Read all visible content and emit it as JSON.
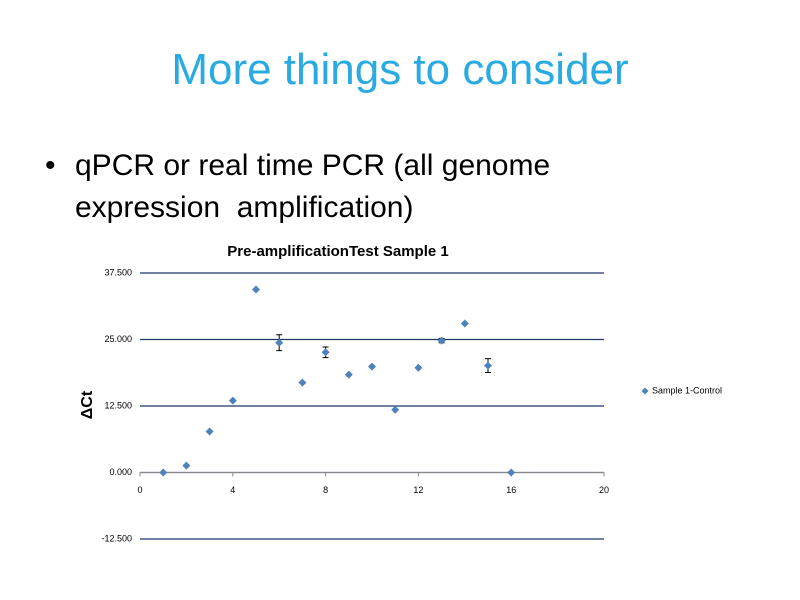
{
  "slide": {
    "title": "More things to consider",
    "bullets": [
      "qPCR or real time PCR (all genome expression  amplification)"
    ]
  },
  "chart_data": {
    "type": "scatter",
    "title": "Pre-amplificationTest Sample 1",
    "y_label": "ΔCt",
    "x": [
      1,
      2,
      3,
      4,
      5,
      6,
      7,
      8,
      9,
      10,
      11,
      12,
      13,
      14,
      15,
      16
    ],
    "series": [
      {
        "name": "Sample 1-Control",
        "color": "#4f81bd",
        "values": [
          0,
          1.3,
          7.7,
          13.5,
          34.4,
          24.4,
          16.9,
          22.6,
          18.4,
          19.9,
          11.8,
          19.7,
          24.8,
          28.0,
          20.1,
          0
        ],
        "errors": [
          null,
          null,
          null,
          null,
          null,
          1.5,
          null,
          1.0,
          null,
          null,
          null,
          null,
          0.4,
          null,
          1.3,
          null
        ]
      }
    ],
    "xlim": [
      0,
      20
    ],
    "xticks": [
      0,
      4,
      8,
      12,
      16,
      20
    ],
    "ylim": [
      -12.5,
      37.5
    ],
    "yticks": [
      {
        "value": 37.5,
        "label": "37.500"
      },
      {
        "value": 25,
        "label": "25.000"
      },
      {
        "value": 12.5,
        "label": "12.500"
      },
      {
        "value": 0,
        "label": "0.000"
      },
      {
        "value": -12.5,
        "label": "-12.500"
      }
    ],
    "grid": true,
    "legend": "right"
  }
}
